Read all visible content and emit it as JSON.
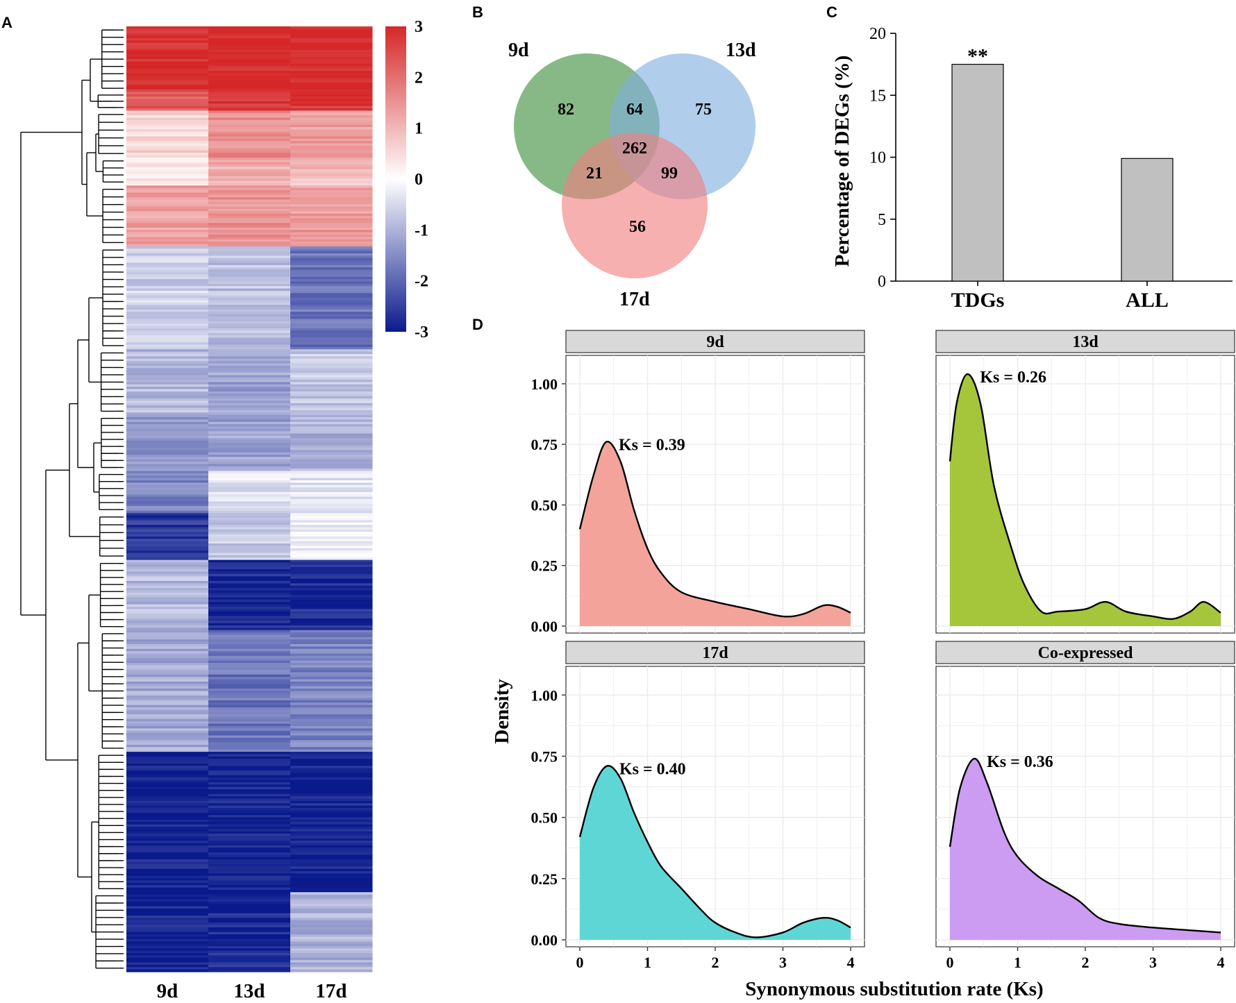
{
  "panel_labels": {
    "a": "A",
    "b": "B",
    "c": "C",
    "d": "D"
  },
  "chart_data": [
    {
      "id": "A",
      "type": "heatmap",
      "columns": [
        "9d",
        "13d",
        "17d"
      ],
      "colorbar": {
        "ticks": [
          3,
          2,
          1,
          0,
          -1,
          -2,
          -3
        ],
        "min": -3,
        "max": 3,
        "colors": {
          "high": "#d62728",
          "mid": "#ffffff",
          "low": "#0a1a8c"
        }
      },
      "blocks": [
        {
          "rows": 28,
          "values": [
            2.9,
            3.0,
            3.0
          ]
        },
        {
          "rows": 8,
          "values": [
            2.3,
            2.8,
            2.8
          ]
        },
        {
          "rows": 20,
          "values": [
            0.6,
            1.6,
            1.4
          ]
        },
        {
          "rows": 12,
          "values": [
            0.2,
            1.1,
            0.9
          ]
        },
        {
          "rows": 26,
          "values": [
            1.3,
            1.5,
            1.4
          ]
        },
        {
          "rows": 44,
          "values": [
            -0.6,
            -0.8,
            -1.8
          ]
        },
        {
          "rows": 28,
          "values": [
            -0.9,
            -1.2,
            -0.7
          ]
        },
        {
          "rows": 24,
          "values": [
            -1.4,
            -1.2,
            -1.0
          ]
        },
        {
          "rows": 18,
          "values": [
            -1.6,
            -0.4,
            -0.3
          ]
        },
        {
          "rows": 20,
          "values": [
            -2.6,
            -0.7,
            -0.2
          ]
        },
        {
          "rows": 30,
          "values": [
            -0.9,
            -2.8,
            -2.8
          ]
        },
        {
          "rows": 52,
          "values": [
            -1.1,
            -1.8,
            -1.6
          ]
        },
        {
          "rows": 60,
          "values": [
            -2.9,
            -2.9,
            -2.9
          ]
        },
        {
          "rows": 34,
          "values": [
            -2.9,
            -2.8,
            -1.0
          ]
        }
      ]
    },
    {
      "id": "B",
      "type": "venn",
      "sets": [
        {
          "name": "9d",
          "color": "#3e8e3e"
        },
        {
          "name": "13d",
          "color": "#7fb0de"
        },
        {
          "name": "17d",
          "color": "#f08080"
        }
      ],
      "regions": [
        {
          "sets": "9d only",
          "value": "82"
        },
        {
          "sets": "9d&13d",
          "value": "64"
        },
        {
          "sets": "13d only",
          "value": "75"
        },
        {
          "sets": "all",
          "value": "262"
        },
        {
          "sets": "9d&17d",
          "value": "21"
        },
        {
          "sets": "13d&17d",
          "value": "99"
        },
        {
          "sets": "17d only",
          "value": "56"
        }
      ]
    },
    {
      "id": "C",
      "type": "bar",
      "categories": [
        "TDGs",
        "ALL"
      ],
      "values": [
        17.5,
        9.9
      ],
      "annotations": [
        "**",
        ""
      ],
      "ylabel": "Percentage of DEGs (%)",
      "ylim": [
        0,
        20
      ],
      "yticks": [
        0,
        5,
        10,
        15,
        20
      ],
      "bar_color": "#c0c0c0"
    },
    {
      "id": "D",
      "type": "area",
      "xlabel": "Synonymous substitution rate (Ks)",
      "ylabel": "Density",
      "xlim": [
        0,
        4
      ],
      "ylim": [
        0,
        1.1
      ],
      "xticks": [
        "0",
        "1",
        "2",
        "3",
        "4"
      ],
      "yticks": [
        "0.00",
        "0.25",
        "0.50",
        "0.75",
        "1.00"
      ],
      "facets": [
        {
          "title": "9d",
          "color": "#f4a39b",
          "annotation": "Ks = 0.39",
          "x": [
            0,
            0.2,
            0.39,
            0.6,
            0.8,
            1.0,
            1.2,
            1.5,
            2.0,
            2.5,
            3.0,
            3.3,
            3.6,
            3.8,
            4.0
          ],
          "y": [
            0.4,
            0.62,
            0.76,
            0.68,
            0.48,
            0.32,
            0.22,
            0.14,
            0.1,
            0.07,
            0.04,
            0.05,
            0.085,
            0.08,
            0.055
          ]
        },
        {
          "title": "13d",
          "color": "#a5c63b",
          "annotation": "Ks = 0.26",
          "x": [
            0,
            0.1,
            0.26,
            0.45,
            0.65,
            0.9,
            1.1,
            1.35,
            1.6,
            2.0,
            2.3,
            2.6,
            3.0,
            3.3,
            3.55,
            3.75,
            4.0
          ],
          "y": [
            0.68,
            0.92,
            1.04,
            0.92,
            0.58,
            0.33,
            0.17,
            0.06,
            0.06,
            0.07,
            0.1,
            0.06,
            0.04,
            0.03,
            0.06,
            0.1,
            0.055
          ]
        },
        {
          "title": "17d",
          "color": "#5fd6d6",
          "annotation": "Ks = 0.40",
          "x": [
            0,
            0.2,
            0.4,
            0.6,
            0.8,
            1.0,
            1.2,
            1.5,
            1.8,
            2.0,
            2.3,
            2.6,
            3.0,
            3.3,
            3.6,
            3.8,
            4.0
          ],
          "y": [
            0.42,
            0.62,
            0.71,
            0.66,
            0.52,
            0.4,
            0.3,
            0.21,
            0.12,
            0.07,
            0.03,
            0.01,
            0.03,
            0.07,
            0.09,
            0.08,
            0.05
          ]
        },
        {
          "title": "Co-expressed",
          "color": "#cc9cf2",
          "annotation": "Ks = 0.36",
          "x": [
            0,
            0.15,
            0.36,
            0.55,
            0.8,
            1.0,
            1.3,
            1.6,
            1.9,
            2.2,
            2.5,
            3.0,
            3.5,
            4.0
          ],
          "y": [
            0.38,
            0.62,
            0.74,
            0.64,
            0.44,
            0.34,
            0.26,
            0.21,
            0.16,
            0.09,
            0.065,
            0.05,
            0.04,
            0.03
          ]
        }
      ]
    }
  ]
}
